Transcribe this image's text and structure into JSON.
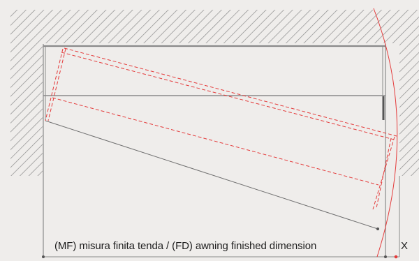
{
  "diagram": {
    "dimension_label": "(MF) misura finita tenda / (FD) awning finished dimension",
    "x_label": "X"
  },
  "colors": {
    "background": "#efedeb",
    "wall_hatch": "#8c8c8c",
    "outline": "#8a8a8a",
    "red": "#e43b3b"
  }
}
